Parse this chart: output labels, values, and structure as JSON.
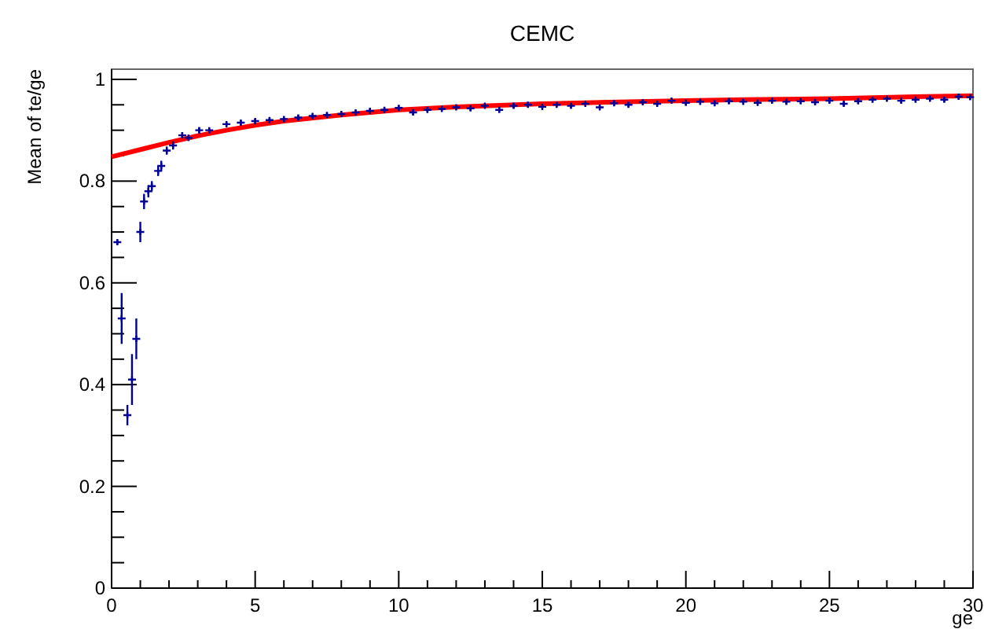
{
  "chart_data": {
    "type": "scatter",
    "title": "CEMC",
    "xlabel": "ge",
    "ylabel": "Mean of te/ge",
    "xlim": [
      0,
      30
    ],
    "ylim": [
      0,
      1.02
    ],
    "xticks": [
      0,
      5,
      10,
      15,
      20,
      25,
      30
    ],
    "yticks": [
      0,
      0.2,
      0.4,
      0.6,
      0.8,
      1
    ],
    "grid": false,
    "marker": "cross",
    "series": [
      {
        "color": "#000099",
        "x": [
          0.2,
          0.35,
          0.55,
          0.71,
          0.86,
          1.0,
          1.13,
          1.28,
          1.4,
          1.62,
          1.73,
          1.92,
          2.14,
          2.46,
          2.68,
          3.05,
          3.4,
          4,
          4.5,
          5,
          5.5,
          6,
          6.5,
          7,
          7.5,
          8,
          8.5,
          9,
          9.5,
          10,
          10.5,
          11,
          11.5,
          12,
          12.5,
          13,
          13.5,
          14,
          14.5,
          15,
          15.5,
          16,
          16.5,
          17,
          17.5,
          18,
          18.5,
          19,
          19.5,
          20,
          20.5,
          21,
          21.5,
          22,
          22.5,
          23,
          23.5,
          24,
          24.5,
          25,
          25.5,
          26,
          26.5,
          27,
          27.5,
          28,
          28.5,
          29,
          29.5,
          29.9
        ],
        "values": [
          0.68,
          0.53,
          0.34,
          0.41,
          0.49,
          0.7,
          0.76,
          0.78,
          0.79,
          0.82,
          0.83,
          0.86,
          0.87,
          0.89,
          0.885,
          0.9,
          0.9,
          0.912,
          0.915,
          0.918,
          0.92,
          0.922,
          0.925,
          0.928,
          0.93,
          0.932,
          0.935,
          0.938,
          0.94,
          0.944,
          0.935,
          0.94,
          0.942,
          0.945,
          0.943,
          0.948,
          0.94,
          0.948,
          0.95,
          0.946,
          0.95,
          0.948,
          0.952,
          0.945,
          0.953,
          0.95,
          0.955,
          0.952,
          0.958,
          0.954,
          0.956,
          0.953,
          0.957,
          0.956,
          0.954,
          0.958,
          0.956,
          0.957,
          0.955,
          0.958,
          0.952,
          0.957,
          0.96,
          0.962,
          0.958,
          0.96,
          0.962,
          0.96,
          0.966,
          0.965
        ],
        "errors": [
          0.005,
          0.05,
          0.02,
          0.05,
          0.04,
          0.02,
          0.015,
          0.012,
          0.01,
          0.01,
          0.01,
          0.008,
          0.008,
          0.006,
          0.006,
          0.006,
          0.005,
          0.005,
          0.005,
          0.005,
          0.005,
          0.005,
          0.005,
          0.005,
          0.005,
          0.005,
          0.005,
          0.005,
          0.005,
          0.005,
          0.005,
          0.005,
          0.005,
          0.005,
          0.005,
          0.005,
          0.005,
          0.005,
          0.005,
          0.005,
          0.005,
          0.005,
          0.005,
          0.005,
          0.005,
          0.005,
          0.005,
          0.005,
          0.005,
          0.005,
          0.005,
          0.005,
          0.005,
          0.005,
          0.005,
          0.005,
          0.005,
          0.005,
          0.005,
          0.005,
          0.005,
          0.005,
          0.005,
          0.005,
          0.005,
          0.005,
          0.005,
          0.005,
          0.005,
          0.005
        ]
      },
      {
        "type": "line",
        "marker": "none",
        "color": "#ff0000",
        "x": [
          0,
          1,
          2,
          3,
          4,
          5,
          6,
          8,
          10,
          12,
          15,
          18,
          20,
          22,
          25,
          28,
          30
        ],
        "values": [
          0.848,
          0.862,
          0.876,
          0.889,
          0.9,
          0.91,
          0.918,
          0.93,
          0.94,
          0.946,
          0.952,
          0.956,
          0.958,
          0.96,
          0.962,
          0.966,
          0.968
        ]
      }
    ]
  }
}
